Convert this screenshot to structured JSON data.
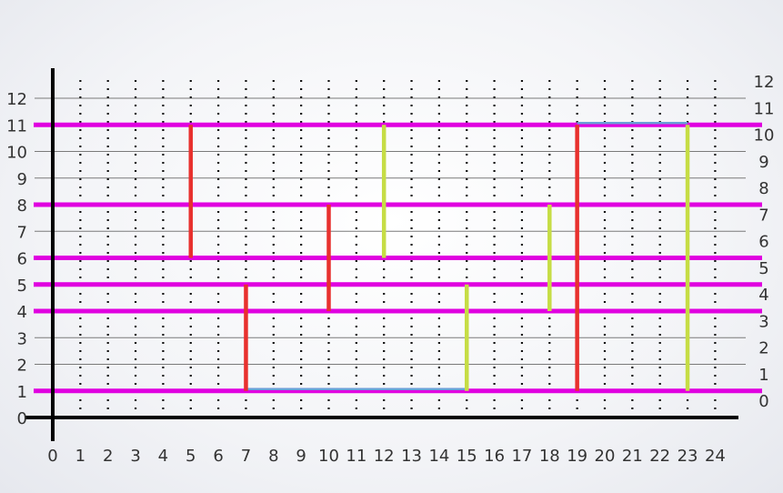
{
  "chart_data": {
    "type": "line",
    "x_ticks": [
      "0",
      "1",
      "2",
      "3",
      "4",
      "5",
      "6",
      "7",
      "8",
      "9",
      "10",
      "11",
      "12",
      "13",
      "14",
      "15",
      "16",
      "17",
      "18",
      "19",
      "20",
      "21",
      "22",
      "23",
      "24"
    ],
    "y_ticks_left": [
      "0",
      "1",
      "2",
      "3",
      "4",
      "5",
      "6",
      "7",
      "8",
      "9",
      "10",
      "11",
      "12"
    ],
    "y_ticks_right": [
      "0",
      "1",
      "2",
      "3",
      "4",
      "5",
      "6",
      "7",
      "8",
      "9",
      "10",
      "11",
      "12"
    ],
    "xlim": [
      0,
      24
    ],
    "ylim": [
      0,
      12
    ],
    "grid": true,
    "colors": {
      "magenta": "#e000e0",
      "red": "#e8312e",
      "lime": "#c6dd45",
      "blue": "#6aa0d8",
      "grid": "#7a7a7a",
      "axis": "#000000"
    },
    "magenta_levels": [
      1,
      4,
      5,
      6,
      8,
      11
    ],
    "red_segments": [
      {
        "x": 5,
        "y1": 6,
        "y2": 11
      },
      {
        "x": 10,
        "y1": 4,
        "y2": 8
      },
      {
        "x": 7,
        "y1": 1,
        "y2": 5
      },
      {
        "x": 19,
        "y1": 1,
        "y2": 11
      }
    ],
    "lime_segments": [
      {
        "x": 12,
        "y1": 6,
        "y2": 11
      },
      {
        "x": 15,
        "y1": 1,
        "y2": 5
      },
      {
        "x": 18,
        "y1": 4,
        "y2": 8
      },
      {
        "x": 23,
        "y1": 1,
        "y2": 11
      }
    ],
    "blue_segments": [
      {
        "y": 1,
        "x1": 7,
        "x2": 15
      },
      {
        "y": 11,
        "x1": 19,
        "x2": 23
      }
    ]
  }
}
